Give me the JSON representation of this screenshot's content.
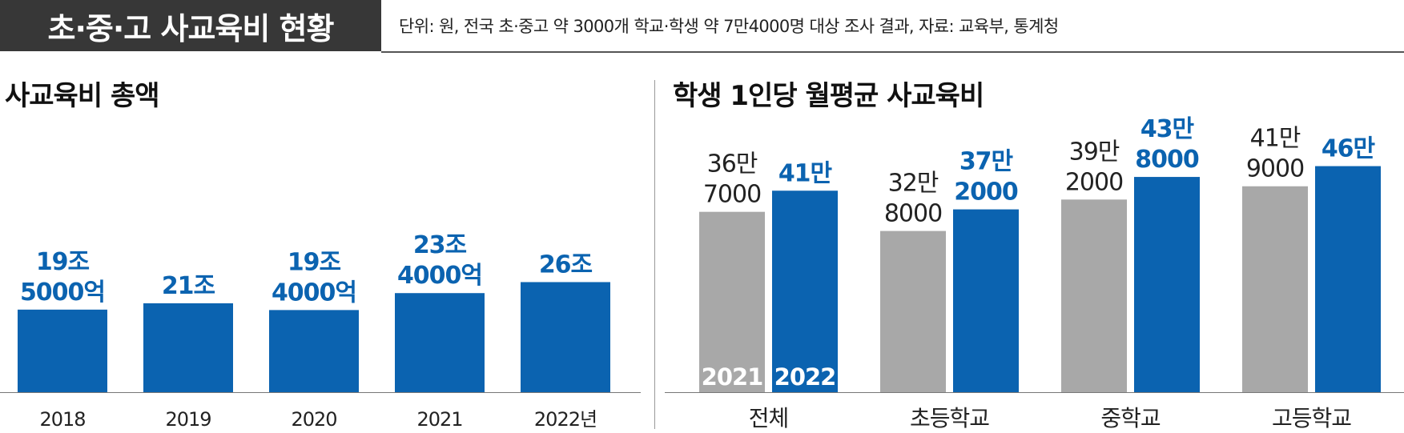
{
  "header": {
    "title": "초·중·고 사교육비 현황",
    "note": "단위: 원, 전국 초·중고 약 3000개 학교·학생 약 7만4000명 대상 조사 결과, 자료: 교육부, 통계청"
  },
  "colors": {
    "blue": "#0b63b0",
    "gray": "#a8a8a8",
    "title_bg": "#373737",
    "axis": "#777777"
  },
  "chart_data": [
    {
      "type": "bar",
      "title": "사교육비 총액",
      "categories": [
        "2018",
        "2019",
        "2020",
        "2021",
        "2022년"
      ],
      "values": [
        19.5,
        21,
        19.4,
        23.4,
        26
      ],
      "value_labels": [
        [
          "19조",
          "5000억"
        ],
        [
          "21조"
        ],
        [
          "19조",
          "4000억"
        ],
        [
          "23조",
          "4000억"
        ],
        [
          "26조"
        ]
      ],
      "unit": "조원"
    },
    {
      "type": "bar",
      "title": "학생 1인당 월평균 사교육비",
      "categories": [
        "전체",
        "초등학교",
        "중학교",
        "고등학교"
      ],
      "series": [
        {
          "name": "2021",
          "values": [
            367000,
            328000,
            392000,
            419000
          ],
          "value_labels": [
            [
              "36만",
              "7000"
            ],
            [
              "32만",
              "8000"
            ],
            [
              "39만",
              "2000"
            ],
            [
              "41만",
              "9000"
            ]
          ]
        },
        {
          "name": "2022",
          "values": [
            410000,
            372000,
            438000,
            460000
          ],
          "value_labels": [
            [
              "41만"
            ],
            [
              "37만",
              "2000"
            ],
            [
              "43만",
              "8000"
            ],
            [
              "46만"
            ]
          ]
        }
      ],
      "unit": "원"
    }
  ]
}
